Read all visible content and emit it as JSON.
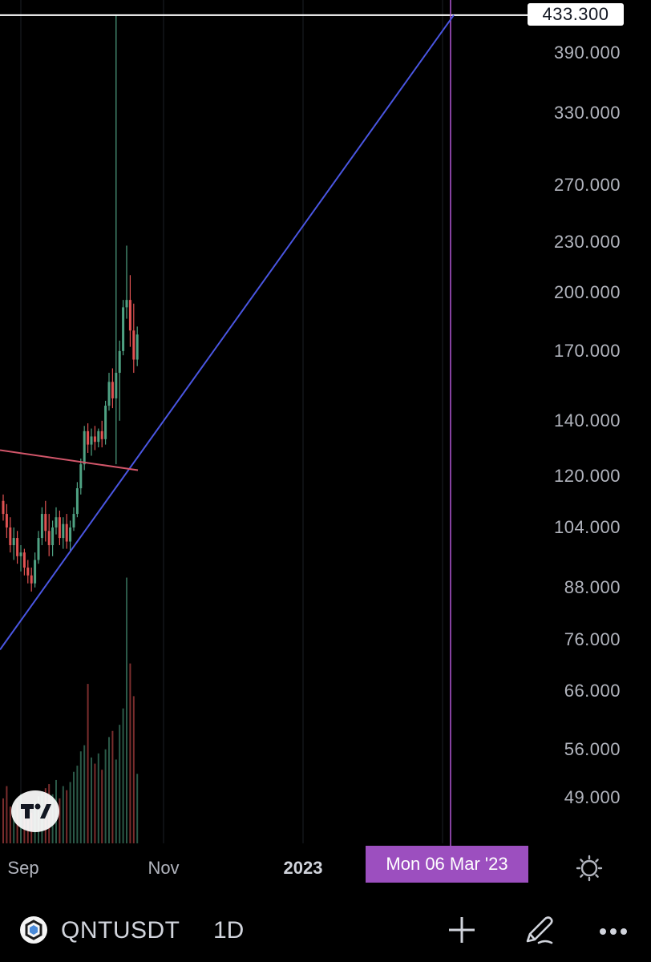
{
  "chart_data": {
    "type": "candlestick",
    "symbol": "QNTUSDT",
    "interval": "1D",
    "y_scale": "log",
    "y_tick_labels": [
      "390.000",
      "330.000",
      "270.000",
      "230.000",
      "200.000",
      "170.000",
      "140.000",
      "120.000",
      "104.000",
      "88.000",
      "76.000",
      "66.000",
      "56.000",
      "49.000"
    ],
    "y_ticks": [
      390,
      330,
      270,
      230,
      200,
      170,
      140,
      120,
      104,
      88,
      76,
      66,
      56,
      49
    ],
    "current_price_label": "433.300",
    "current_price": 433.3,
    "x_tick_labels": [
      {
        "label": "Sep",
        "bold": false
      },
      {
        "label": "Nov",
        "bold": false
      },
      {
        "label": "2023",
        "bold": true
      }
    ],
    "crosshair_date_label": "Mon 06 Mar '23",
    "candles": [
      {
        "o": 112,
        "h": 114,
        "l": 106,
        "c": 108
      },
      {
        "o": 108,
        "h": 111,
        "l": 101,
        "c": 104
      },
      {
        "o": 104,
        "h": 107,
        "l": 97,
        "c": 99
      },
      {
        "o": 99,
        "h": 104,
        "l": 95,
        "c": 101
      },
      {
        "o": 101,
        "h": 103,
        "l": 94,
        "c": 96
      },
      {
        "o": 96,
        "h": 99,
        "l": 92,
        "c": 97
      },
      {
        "o": 97,
        "h": 98,
        "l": 91,
        "c": 93
      },
      {
        "o": 93,
        "h": 95,
        "l": 89,
        "c": 91
      },
      {
        "o": 91,
        "h": 93,
        "l": 87,
        "c": 89
      },
      {
        "o": 89,
        "h": 97,
        "l": 88,
        "c": 95
      },
      {
        "o": 95,
        "h": 103,
        "l": 94,
        "c": 101
      },
      {
        "o": 101,
        "h": 110,
        "l": 99,
        "c": 108
      },
      {
        "o": 108,
        "h": 112,
        "l": 100,
        "c": 103
      },
      {
        "o": 103,
        "h": 108,
        "l": 96,
        "c": 99
      },
      {
        "o": 99,
        "h": 106,
        "l": 96,
        "c": 104
      },
      {
        "o": 104,
        "h": 110,
        "l": 102,
        "c": 107
      },
      {
        "o": 107,
        "h": 109,
        "l": 99,
        "c": 101
      },
      {
        "o": 101,
        "h": 107,
        "l": 98,
        "c": 105
      },
      {
        "o": 105,
        "h": 108,
        "l": 98,
        "c": 100
      },
      {
        "o": 100,
        "h": 106,
        "l": 97,
        "c": 104
      },
      {
        "o": 104,
        "h": 110,
        "l": 103,
        "c": 108
      },
      {
        "o": 108,
        "h": 118,
        "l": 107,
        "c": 116
      },
      {
        "o": 116,
        "h": 126,
        "l": 114,
        "c": 124
      },
      {
        "o": 124,
        "h": 138,
        "l": 122,
        "c": 136
      },
      {
        "o": 136,
        "h": 139,
        "l": 128,
        "c": 131
      },
      {
        "o": 131,
        "h": 137,
        "l": 127,
        "c": 134
      },
      {
        "o": 134,
        "h": 138,
        "l": 129,
        "c": 132
      },
      {
        "o": 132,
        "h": 137,
        "l": 130,
        "c": 136
      },
      {
        "o": 136,
        "h": 140,
        "l": 130,
        "c": 133
      },
      {
        "o": 133,
        "h": 148,
        "l": 131,
        "c": 146
      },
      {
        "o": 146,
        "h": 160,
        "l": 144,
        "c": 156
      },
      {
        "o": 156,
        "h": 162,
        "l": 145,
        "c": 149
      },
      {
        "o": 149,
        "h": 433.3,
        "l": 124,
        "c": 160
      },
      {
        "o": 160,
        "h": 175,
        "l": 140,
        "c": 170
      },
      {
        "o": 170,
        "h": 196,
        "l": 168,
        "c": 192
      },
      {
        "o": 192,
        "h": 228,
        "l": 186,
        "c": 196
      },
      {
        "o": 196,
        "h": 210,
        "l": 172,
        "c": 180
      },
      {
        "o": 180,
        "h": 194,
        "l": 160,
        "c": 166
      },
      {
        "o": 166,
        "h": 182,
        "l": 163,
        "c": 178
      }
    ],
    "volumes": [
      22,
      28,
      18,
      16,
      20,
      24,
      19,
      17,
      15,
      21,
      23,
      25,
      27,
      29,
      24,
      31,
      22,
      28,
      26,
      30,
      35,
      38,
      45,
      48,
      78,
      42,
      39,
      44,
      36,
      46,
      52,
      55,
      41,
      58,
      66,
      130,
      88,
      72,
      34
    ],
    "trendlines": [
      {
        "name": "support",
        "color": "#4a56e2",
        "points": [
          [
            "start",
            74
          ],
          [
            "Mon 06 Mar '23",
            433.3
          ]
        ]
      },
      {
        "name": "resistance",
        "color": "#d2566a",
        "points": [
          [
            "start",
            129
          ],
          [
            "end",
            122
          ]
        ]
      }
    ],
    "horizontal_line": {
      "value": 433.3,
      "color": "#ffffff"
    },
    "colors": {
      "up": "#4fa283",
      "down": "#e05252",
      "crosshair": "#b259d6",
      "grid": "#1c1f26",
      "background": "#000000"
    }
  },
  "bottom_bar": {
    "symbol": "QNTUSDT",
    "interval": "1D",
    "add_icon": "plus-icon",
    "draw_icon": "pen-icon",
    "more_icon": "ellipsis-icon"
  },
  "settings_icon": "gear-icon",
  "logo": "tradingview-logo"
}
